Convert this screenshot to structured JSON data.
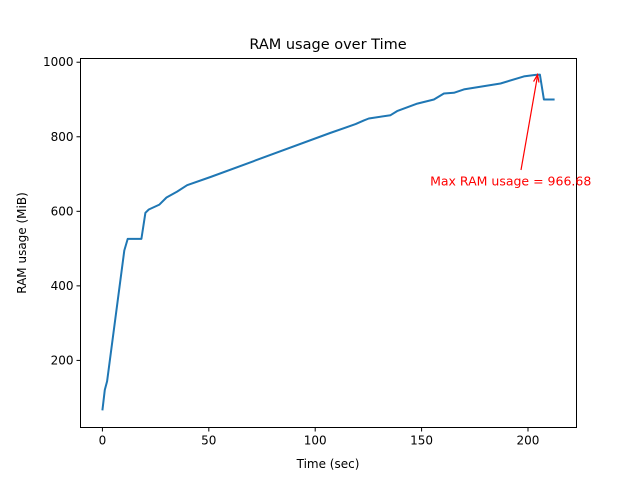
{
  "chart_data": {
    "type": "line",
    "title": "RAM usage over Time",
    "xlabel": "Time (sec)",
    "ylabel": "RAM usage (MiB)",
    "xlim": [
      -10.3,
      222.8
    ],
    "ylim": [
      20,
      1010
    ],
    "xticks": [
      0,
      50,
      100,
      150,
      200
    ],
    "yticks": [
      200,
      400,
      600,
      800,
      1000
    ],
    "grid": false,
    "line_color": "#1f77b4",
    "series": [
      {
        "x": [
          0,
          1.1,
          2.2,
          10.3,
          11.9,
          18.3,
          20.2,
          21.8,
          26.8,
          30.1,
          35.1,
          39.8,
          50.8,
          107,
          119,
          122.9,
          125.2,
          135.4,
          138.5,
          148,
          155.8,
          160.5,
          165.2,
          169.9,
          187.1,
          198.1,
          203.6,
          205.6,
          207.5,
          212.5
        ],
        "y": [
          66,
          121,
          144,
          495,
          526,
          526,
          596,
          605,
          618,
          637,
          653,
          670,
          692,
          810,
          834,
          844,
          849,
          858,
          869,
          889,
          900,
          916,
          918,
          927,
          943,
          962,
          966,
          966.68,
          900,
          900
        ]
      }
    ],
    "annotation": {
      "text": "Max RAM usage = 966.68",
      "color": "#ff0000",
      "xy": [
        204.5,
        966.68
      ],
      "xytext": [
        154,
        680
      ]
    }
  }
}
